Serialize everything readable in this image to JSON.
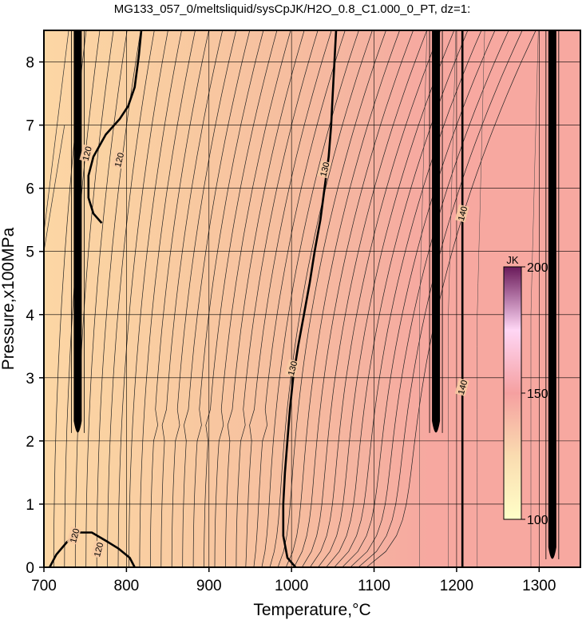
{
  "chart_data": {
    "type": "heatmap",
    "title": "MG133_057_0/meltsliquid/sysCpJK/H2O_0.8_C1.000_0_PT, dz=1:",
    "xlabel": "Temperature,°C",
    "ylabel": "Pressure,x100MPa",
    "xlim": [
      700,
      1350
    ],
    "ylim": [
      0,
      8.5
    ],
    "x_ticks": [
      700,
      800,
      900,
      1000,
      1100,
      1200,
      1300
    ],
    "y_ticks": [
      0,
      1,
      2,
      3,
      4,
      5,
      6,
      7,
      8
    ],
    "grid": true,
    "colorbar": {
      "title": "JK",
      "range": [
        100,
        200
      ],
      "ticks": [
        100,
        150,
        200
      ],
      "colors": [
        "#ffffc8",
        "#fadcb0",
        "#f5a0a0",
        "#ffd6f5",
        "#6a1a5a"
      ]
    },
    "background_field": {
      "temperature": [
        700,
        800,
        900,
        1000,
        1100,
        1150,
        1170,
        1350
      ],
      "cp_jk": [
        122,
        124,
        126,
        129,
        134,
        137,
        145,
        145
      ],
      "colors": [
        "#fcd6a4",
        "#fad0a2",
        "#f8c7a0",
        "#f6bd9f",
        "#f5b1a0",
        "#f6aaa0",
        "#f7a8a0",
        "#f7a8a0"
      ]
    },
    "contours": [
      {
        "level": 120,
        "bold": true,
        "points": [
          [
            770,
            5.45
          ],
          [
            760,
            5.6
          ],
          [
            754,
            5.85
          ],
          [
            754,
            6.2
          ],
          [
            760,
            6.5
          ],
          [
            775,
            6.85
          ],
          [
            792,
            7.1
          ],
          [
            802,
            7.3
          ],
          [
            810,
            7.6
          ],
          [
            815,
            8.1
          ],
          [
            818,
            8.5
          ]
        ]
      },
      {
        "level": 120,
        "bold": true,
        "points": [
          [
            707,
            0
          ],
          [
            715,
            0.2
          ],
          [
            728,
            0.4
          ],
          [
            742,
            0.55
          ],
          [
            758,
            0.55
          ],
          [
            775,
            0.42
          ],
          [
            790,
            0.3
          ],
          [
            804,
            0.15
          ],
          [
            810,
            0
          ]
        ]
      },
      {
        "level": 130,
        "bold": true,
        "points": [
          [
            1005,
            0
          ],
          [
            995,
            0.15
          ],
          [
            990,
            0.5
          ],
          [
            990,
            1
          ],
          [
            992,
            1.5
          ],
          [
            995,
            2
          ],
          [
            998,
            2.5
          ],
          [
            1002,
            3
          ],
          [
            1008,
            3.5
          ],
          [
            1015,
            4
          ],
          [
            1022,
            4.5
          ],
          [
            1028,
            5
          ],
          [
            1035,
            5.5
          ],
          [
            1040,
            6
          ],
          [
            1045,
            6.5
          ],
          [
            1048,
            7
          ],
          [
            1050,
            7.5
          ],
          [
            1052,
            8
          ],
          [
            1054,
            8.5
          ]
        ]
      },
      {
        "level": 140,
        "bold": true,
        "points": [
          [
            1207,
            0
          ],
          [
            1207,
            8.5
          ]
        ]
      }
    ],
    "contour_labels": [
      {
        "text": "120",
        "x": 752,
        "y": 6.55
      },
      {
        "text": "120",
        "x": 791,
        "y": 6.45
      },
      {
        "text": "120",
        "x": 737,
        "y": 0.5
      },
      {
        "text": "120",
        "x": 766,
        "y": 0.28
      },
      {
        "text": "130",
        "x": 1040,
        "y": 6.3
      },
      {
        "text": "130",
        "x": 1001,
        "y": 3.15
      },
      {
        "text": "140",
        "x": 1207,
        "y": 5.6
      },
      {
        "text": "140",
        "x": 1207,
        "y": 2.85
      }
    ],
    "blobs": [
      {
        "x": 741,
        "y_min": 2.0,
        "y_max": 8.5
      },
      {
        "x": 1175,
        "y_min": 2.0,
        "y_max": 8.5
      },
      {
        "x": 1316,
        "y_min": 0,
        "y_max": 8.5
      }
    ]
  }
}
